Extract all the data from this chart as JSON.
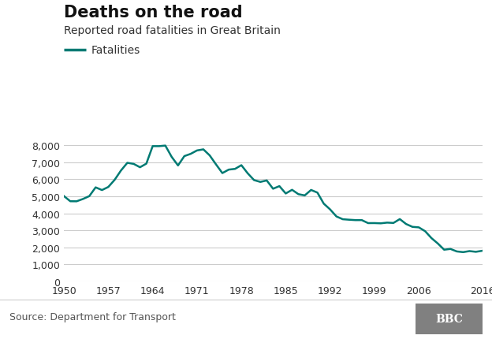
{
  "title": "Deaths on the road",
  "subtitle": "Reported road fatalities in Great Britain",
  "legend_label": "Fatalities",
  "source": "Source: Department for Transport",
  "line_color": "#007a73",
  "line_width": 1.8,
  "background_color": "#ffffff",
  "years": [
    1950,
    1951,
    1952,
    1953,
    1954,
    1955,
    1956,
    1957,
    1958,
    1959,
    1960,
    1961,
    1962,
    1963,
    1964,
    1965,
    1966,
    1967,
    1968,
    1969,
    1970,
    1971,
    1972,
    1973,
    1974,
    1975,
    1976,
    1977,
    1978,
    1979,
    1980,
    1981,
    1982,
    1983,
    1984,
    1985,
    1986,
    1987,
    1988,
    1989,
    1990,
    1991,
    1992,
    1993,
    1994,
    1995,
    1996,
    1997,
    1998,
    1999,
    2000,
    2001,
    2002,
    2003,
    2004,
    2005,
    2006,
    2007,
    2008,
    2009,
    2010,
    2011,
    2012,
    2013,
    2014,
    2015,
    2016
  ],
  "fatalities": [
    5010,
    4709,
    4706,
    4843,
    5010,
    5526,
    5367,
    5550,
    5970,
    6520,
    6970,
    6908,
    6709,
    6922,
    7952,
    7952,
    7985,
    7319,
    6816,
    7365,
    7499,
    7699,
    7763,
    7406,
    6876,
    6366,
    6570,
    6614,
    6831,
    6352,
    5953,
    5846,
    5934,
    5445,
    5599,
    5165,
    5382,
    5125,
    5052,
    5373,
    5217,
    4568,
    4229,
    3814,
    3650,
    3621,
    3598,
    3599,
    3421,
    3423,
    3409,
    3450,
    3431,
    3658,
    3368,
    3201,
    3172,
    2946,
    2538,
    2222,
    1857,
    1901,
    1754,
    1713,
    1775,
    1732,
    1792
  ],
  "xtick_years": [
    1950,
    1957,
    1964,
    1971,
    1978,
    1985,
    1992,
    1999,
    2006,
    2016
  ],
  "ylim": [
    0,
    9000
  ],
  "ytick_values": [
    0,
    1000,
    2000,
    3000,
    4000,
    5000,
    6000,
    7000,
    8000
  ],
  "grid_color": "#cccccc",
  "title_fontsize": 15,
  "subtitle_fontsize": 10,
  "tick_fontsize": 9,
  "legend_fontsize": 10,
  "source_fontsize": 9,
  "bbc_box_color": "#808080",
  "bbc_text_color": "#ffffff",
  "footer_line_color": "#cccccc"
}
